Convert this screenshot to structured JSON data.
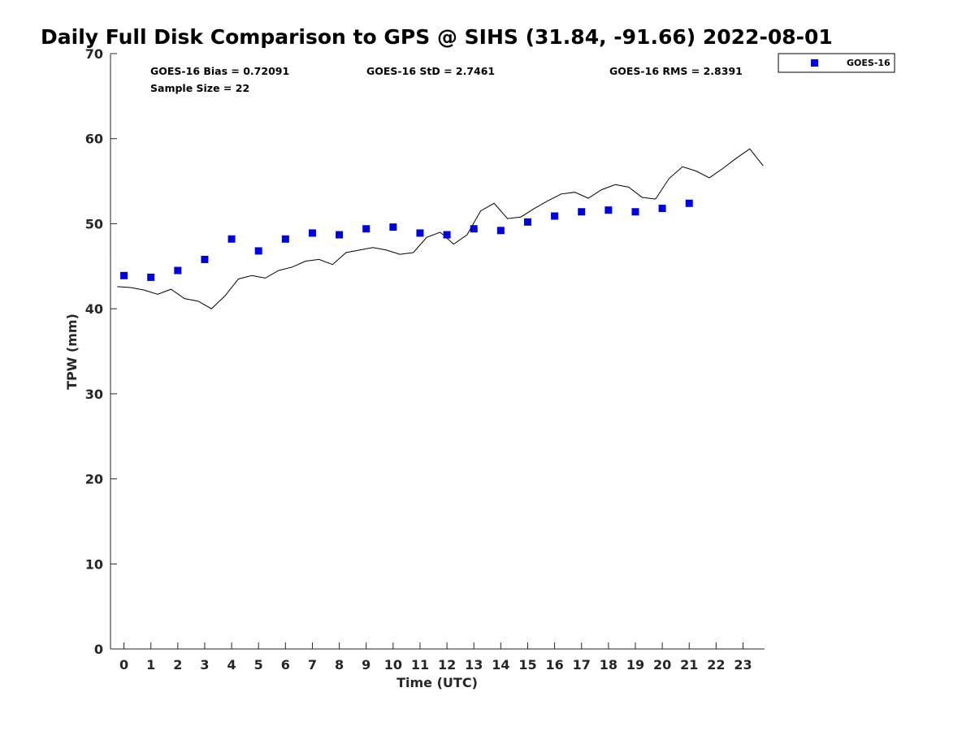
{
  "chart_data": {
    "type": "scatter",
    "title": "Daily Full Disk Comparison to GPS @ SIHS (31.84, -91.66) 2022-08-01",
    "xlabel": "Time (UTC)",
    "ylabel": "TPW (mm)",
    "xlim": [
      -0.5,
      23.8
    ],
    "ylim": [
      0,
      70
    ],
    "x_ticks": [
      0,
      1,
      2,
      3,
      4,
      5,
      6,
      7,
      8,
      9,
      10,
      11,
      12,
      13,
      14,
      15,
      16,
      17,
      18,
      19,
      20,
      21,
      22,
      23
    ],
    "y_ticks": [
      0,
      10,
      20,
      30,
      40,
      50,
      60,
      70
    ],
    "grid": false,
    "legend_position": "top-right, outside plot",
    "stats": {
      "bias": "GOES-16 Bias = 0.72091",
      "std": "GOES-16 StD = 2.7461",
      "rms": "GOES-16 RMS = 2.8391",
      "sample": "Sample Size = 22"
    },
    "series": [
      {
        "name": "GOES-16",
        "kind": "scatter",
        "marker": "square",
        "color": "#0000dd",
        "x": [
          0,
          1,
          2,
          3,
          4,
          5,
          6,
          7,
          8,
          9,
          10,
          11,
          12,
          13,
          14,
          15,
          16,
          17,
          18,
          19,
          20,
          21
        ],
        "y": [
          43.9,
          43.7,
          44.5,
          45.8,
          48.2,
          46.8,
          48.2,
          48.9,
          48.7,
          49.4,
          49.6,
          48.9,
          48.7,
          49.4,
          49.2,
          50.2,
          50.9,
          51.4,
          51.6,
          51.4,
          51.8,
          52.4
        ]
      },
      {
        "kind": "line",
        "color": "#000000",
        "x": [
          -0.25,
          0.25,
          0.75,
          1.25,
          1.75,
          2.25,
          2.75,
          3.25,
          3.75,
          4.25,
          4.75,
          5.25,
          5.75,
          6.25,
          6.75,
          7.25,
          7.75,
          8.25,
          8.75,
          9.25,
          9.75,
          10.25,
          10.75,
          11.25,
          11.75,
          12.25,
          12.75,
          13.25,
          13.75,
          14.25,
          14.75,
          15.25,
          15.75,
          16.25,
          16.75,
          17.25,
          17.75,
          18.25,
          18.75,
          19.25,
          19.75,
          20.25,
          20.75,
          21.25,
          21.75,
          22.25,
          22.75,
          23.25,
          23.75
        ],
        "y": [
          42.6,
          42.5,
          42.2,
          41.7,
          42.3,
          41.2,
          40.9,
          40.0,
          41.5,
          43.5,
          43.9,
          43.6,
          44.5,
          44.9,
          45.6,
          45.8,
          45.2,
          46.6,
          46.9,
          47.2,
          46.9,
          46.4,
          46.6,
          48.4,
          49.0,
          47.6,
          48.7,
          51.5,
          52.4,
          50.6,
          50.8,
          51.8,
          52.7,
          53.5,
          53.7,
          53.0,
          54.0,
          54.6,
          54.3,
          53.1,
          52.9,
          55.3,
          56.7,
          56.2,
          55.4,
          56.5,
          57.7,
          58.8,
          56.8
        ]
      }
    ]
  }
}
